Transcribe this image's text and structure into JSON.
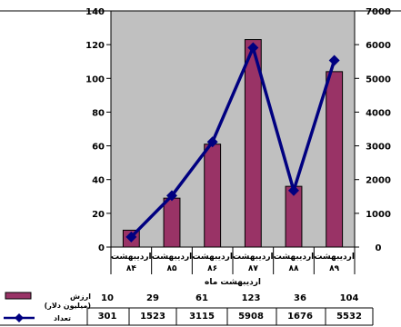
{
  "chart_data": {
    "type": "bar",
    "categories": [
      {
        "line1": "اردیبهشت",
        "line2": "۸۴"
      },
      {
        "line1": "اردیبهشت",
        "line2": "۸۵"
      },
      {
        "line1": "اردیبهشت",
        "line2": "۸۶"
      },
      {
        "line1": "اردیبهشت",
        "line2": "۸۷"
      },
      {
        "line1": "اردیبهشت",
        "line2": "۸۸"
      },
      {
        "line1": "اردیبهشت",
        "line2": "۸۹"
      }
    ],
    "xlabel": "اردیبهشت ماه",
    "series": [
      {
        "name": "ارزش\n(میلیون دلار)",
        "type": "bar",
        "axis": "left",
        "color": "#993366",
        "values": [
          10,
          29,
          61,
          123,
          36,
          104
        ]
      },
      {
        "name": "تعداد",
        "type": "line",
        "axis": "right",
        "color": "#000080",
        "values": [
          301,
          1523,
          3115,
          5908,
          1676,
          5532
        ]
      }
    ],
    "y_left": {
      "lim": [
        0,
        140
      ],
      "ticks": [
        0,
        20,
        40,
        60,
        80,
        100,
        120,
        140
      ]
    },
    "y_right": {
      "lim": [
        0,
        7000
      ],
      "ticks": [
        0,
        1000,
        2000,
        3000,
        4000,
        5000,
        6000,
        7000
      ]
    },
    "plot_background": "#c0c0c0",
    "grid": false,
    "legend": "data-table-bottom"
  }
}
